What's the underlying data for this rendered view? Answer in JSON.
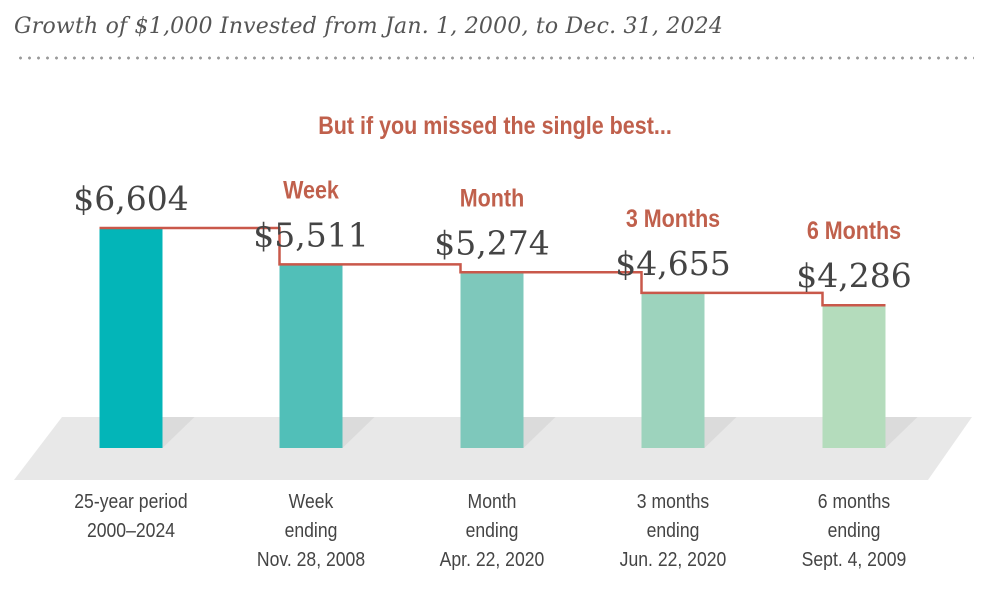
{
  "title": "Growth of $1,000 Invested from Jan. 1, 2000, to Dec. 31, 2024",
  "subtitle": "But if you missed the single best...",
  "colors": {
    "step_line": "#c9584a",
    "accent_text": "#c0604c",
    "value_text": "#444444",
    "floor": "#e8e8e8",
    "bars": [
      "#03b5b8",
      "#51bfb8",
      "#7ec8bb",
      "#9dd3bd",
      "#b4dcbc"
    ]
  },
  "chart_data": {
    "type": "bar",
    "title": "Growth of $1,000 Invested from Jan. 1, 2000, to Dec. 31, 2024",
    "subtitle": "But if you missed the single best...",
    "xlabel": "",
    "ylabel": "",
    "grid": false,
    "ylim": [
      0,
      6604
    ],
    "categories": [
      [
        "25-year period",
        "2000–2024"
      ],
      [
        "Week",
        "ending",
        "Nov. 28, 2008"
      ],
      [
        "Month",
        "ending",
        "Apr. 22, 2020"
      ],
      [
        "3 months",
        "ending",
        "Jun. 22, 2020"
      ],
      [
        "6 months",
        "ending",
        "Sept. 4, 2009"
      ]
    ],
    "headers": [
      "",
      "Week",
      "Month",
      "3 Months",
      "6 Months"
    ],
    "values": [
      6604,
      5511,
      5274,
      4655,
      4286
    ],
    "value_labels": [
      "$6,604",
      "$5,511",
      "$5,274",
      "$4,655",
      "$4,286"
    ]
  }
}
